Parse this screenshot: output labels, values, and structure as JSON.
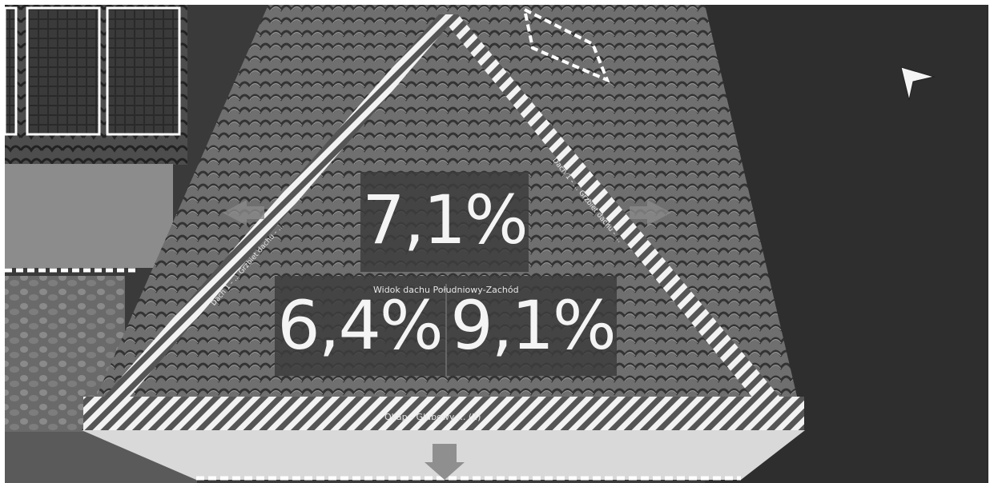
{
  "view": {
    "roof_view_title": "Widok dachu Południowy-Zachód",
    "eave_label": "Okap - Głubowy ... (2)",
    "ridge_left_label": "Dach 1 - ... Grzbiet dachu - ...",
    "ridge_right_label": "Dach 1 - ... Grzbiet dachu - ..."
  },
  "percentages": {
    "top": "7,1%",
    "left": "6,4%",
    "right": "9,1%"
  },
  "colors": {
    "background_dark": "#2c2c2c",
    "roof_tile": "#6a6a6a",
    "highlight_stripe": "#f2f2f2",
    "overlay_box": "#3a3a3a"
  },
  "icons": [
    "pointer-arrow-icon",
    "arrow-left-icon",
    "arrow-right-icon",
    "arrow-down-icon"
  ]
}
